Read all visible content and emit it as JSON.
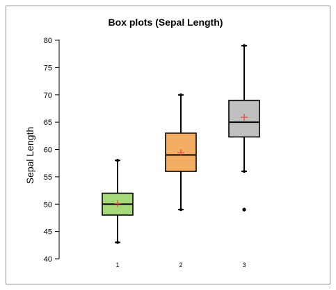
{
  "chart_data": {
    "type": "box",
    "title": "Box plots (Sepal Length)",
    "ylabel": "Sepal Length",
    "xlabel": "",
    "ylim": [
      40,
      80
    ],
    "yticks": [
      40,
      45,
      50,
      55,
      60,
      65,
      70,
      75,
      80
    ],
    "ytick_labels": [
      "40",
      "45",
      "50",
      "55",
      "60",
      "65",
      "70",
      "75",
      "80"
    ],
    "categories": [
      "1",
      "2",
      "3"
    ],
    "boxes": [
      {
        "category": "1",
        "color": "#a6d97a",
        "whisker_low": 43,
        "q1": 48,
        "median": 50,
        "q3": 52,
        "whisker_high": 58,
        "mean": 50.1,
        "outliers": []
      },
      {
        "category": "2",
        "color": "#f4ae63",
        "whisker_low": 49,
        "q1": 56,
        "median": 59,
        "q3": 63,
        "whisker_high": 70,
        "mean": 59.4,
        "outliers": []
      },
      {
        "category": "3",
        "color": "#bfbfbf",
        "whisker_low": 56,
        "q1": 62.3,
        "median": 65,
        "q3": 69,
        "whisker_high": 79,
        "mean": 65.9,
        "outliers": [
          49
        ]
      }
    ],
    "mean_marker_color": "#e8413c",
    "grid": false,
    "legend": false
  }
}
